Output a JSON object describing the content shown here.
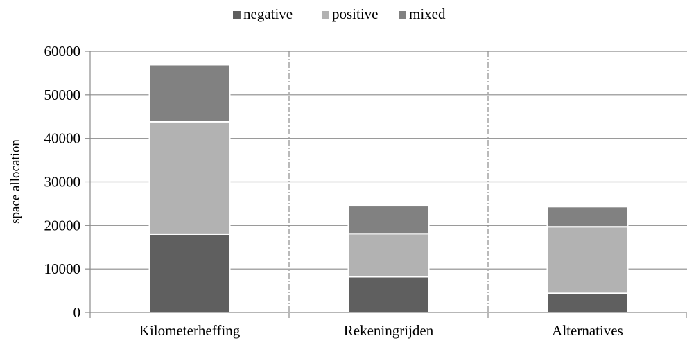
{
  "chart_data": {
    "type": "bar",
    "stacked": true,
    "categories": [
      "Kilometerheffing",
      "Rekeningrijden",
      "Alternatives"
    ],
    "series": [
      {
        "name": "negative",
        "values": [
          18000,
          8200,
          4400
        ],
        "color": "#5f5f5f"
      },
      {
        "name": "positive",
        "values": [
          25800,
          9900,
          15300
        ],
        "color": "#b2b2b2"
      },
      {
        "name": "mixed",
        "values": [
          13100,
          6400,
          4600
        ],
        "color": "#818181"
      }
    ],
    "title": "",
    "xlabel": "",
    "ylabel": "space allocation",
    "ylim": [
      0,
      60000
    ],
    "yticks": [
      "0",
      "10000",
      "20000",
      "30000",
      "40000",
      "50000",
      "60000"
    ],
    "grid": true,
    "legend_position": "top"
  }
}
